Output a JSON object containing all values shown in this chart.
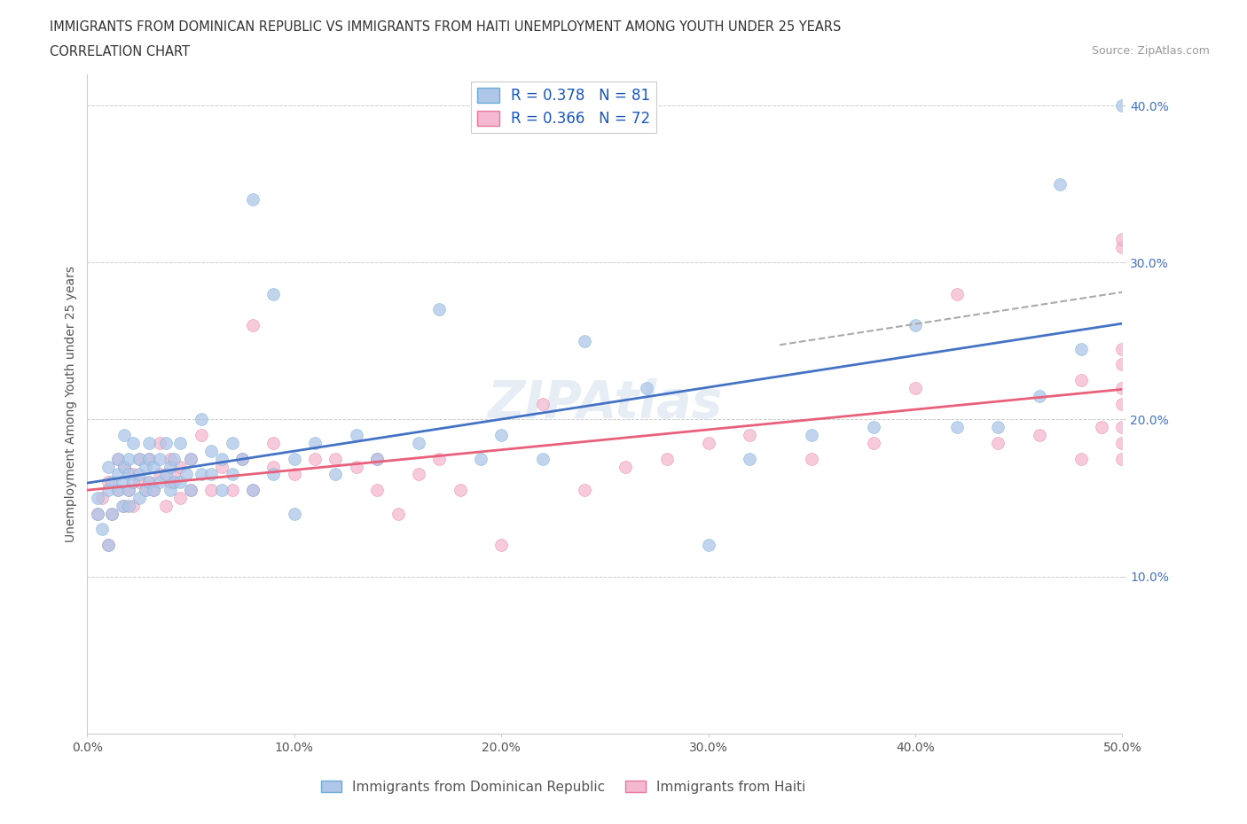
{
  "title_line1": "IMMIGRANTS FROM DOMINICAN REPUBLIC VS IMMIGRANTS FROM HAITI UNEMPLOYMENT AMONG YOUTH UNDER 25 YEARS",
  "title_line2": "CORRELATION CHART",
  "source": "Source: ZipAtlas.com",
  "ylabel": "Unemployment Among Youth under 25 years",
  "xlim": [
    0.0,
    0.5
  ],
  "ylim": [
    0.0,
    0.42
  ],
  "xtick_vals": [
    0.0,
    0.1,
    0.2,
    0.3,
    0.4,
    0.5
  ],
  "ytick_vals": [
    0.1,
    0.2,
    0.3,
    0.4
  ],
  "color_dr": "#aec6e8",
  "color_haiti": "#f4b8d0",
  "edge_dr": "#6aaed6",
  "edge_haiti": "#e87aa0",
  "line_dr": "#4472c4",
  "line_haiti": "#e8607a",
  "r_dr": 0.378,
  "n_dr": 81,
  "r_haiti": 0.366,
  "n_haiti": 72,
  "dr_x": [
    0.005,
    0.005,
    0.007,
    0.01,
    0.01,
    0.01,
    0.012,
    0.012,
    0.015,
    0.015,
    0.015,
    0.017,
    0.017,
    0.018,
    0.018,
    0.02,
    0.02,
    0.02,
    0.02,
    0.022,
    0.022,
    0.025,
    0.025,
    0.025,
    0.028,
    0.028,
    0.03,
    0.03,
    0.03,
    0.032,
    0.032,
    0.035,
    0.035,
    0.038,
    0.038,
    0.04,
    0.04,
    0.042,
    0.042,
    0.045,
    0.045,
    0.048,
    0.05,
    0.05,
    0.055,
    0.055,
    0.06,
    0.06,
    0.065,
    0.065,
    0.07,
    0.07,
    0.075,
    0.08,
    0.08,
    0.09,
    0.09,
    0.1,
    0.1,
    0.11,
    0.12,
    0.13,
    0.14,
    0.16,
    0.17,
    0.19,
    0.2,
    0.22,
    0.24,
    0.27,
    0.3,
    0.32,
    0.35,
    0.38,
    0.4,
    0.42,
    0.44,
    0.46,
    0.47,
    0.48,
    0.5
  ],
  "dr_y": [
    0.14,
    0.15,
    0.13,
    0.12,
    0.155,
    0.17,
    0.14,
    0.16,
    0.155,
    0.165,
    0.175,
    0.145,
    0.16,
    0.17,
    0.19,
    0.145,
    0.155,
    0.165,
    0.175,
    0.16,
    0.185,
    0.15,
    0.165,
    0.175,
    0.155,
    0.17,
    0.16,
    0.175,
    0.185,
    0.155,
    0.17,
    0.16,
    0.175,
    0.165,
    0.185,
    0.155,
    0.17,
    0.16,
    0.175,
    0.16,
    0.185,
    0.165,
    0.155,
    0.175,
    0.165,
    0.2,
    0.165,
    0.18,
    0.155,
    0.175,
    0.165,
    0.185,
    0.175,
    0.155,
    0.34,
    0.165,
    0.28,
    0.14,
    0.175,
    0.185,
    0.165,
    0.19,
    0.175,
    0.185,
    0.27,
    0.175,
    0.19,
    0.175,
    0.25,
    0.22,
    0.12,
    0.175,
    0.19,
    0.195,
    0.26,
    0.195,
    0.195,
    0.215,
    0.35,
    0.245,
    0.4
  ],
  "haiti_x": [
    0.005,
    0.007,
    0.01,
    0.01,
    0.012,
    0.015,
    0.015,
    0.018,
    0.018,
    0.02,
    0.022,
    0.022,
    0.025,
    0.025,
    0.028,
    0.03,
    0.03,
    0.032,
    0.035,
    0.035,
    0.038,
    0.04,
    0.04,
    0.042,
    0.045,
    0.045,
    0.05,
    0.05,
    0.055,
    0.06,
    0.065,
    0.07,
    0.075,
    0.08,
    0.08,
    0.09,
    0.09,
    0.1,
    0.11,
    0.12,
    0.13,
    0.14,
    0.14,
    0.15,
    0.16,
    0.17,
    0.18,
    0.2,
    0.22,
    0.24,
    0.26,
    0.28,
    0.3,
    0.32,
    0.35,
    0.38,
    0.4,
    0.42,
    0.44,
    0.46,
    0.48,
    0.48,
    0.49,
    0.5,
    0.5,
    0.5,
    0.5,
    0.5,
    0.5,
    0.5,
    0.5,
    0.5
  ],
  "haiti_y": [
    0.14,
    0.15,
    0.12,
    0.16,
    0.14,
    0.155,
    0.175,
    0.145,
    0.17,
    0.155,
    0.145,
    0.165,
    0.16,
    0.175,
    0.155,
    0.16,
    0.175,
    0.155,
    0.165,
    0.185,
    0.145,
    0.16,
    0.175,
    0.165,
    0.15,
    0.17,
    0.155,
    0.175,
    0.19,
    0.155,
    0.17,
    0.155,
    0.175,
    0.155,
    0.26,
    0.17,
    0.185,
    0.165,
    0.175,
    0.175,
    0.17,
    0.155,
    0.175,
    0.14,
    0.165,
    0.175,
    0.155,
    0.12,
    0.21,
    0.155,
    0.17,
    0.175,
    0.185,
    0.19,
    0.175,
    0.185,
    0.22,
    0.28,
    0.185,
    0.19,
    0.175,
    0.225,
    0.195,
    0.175,
    0.185,
    0.195,
    0.22,
    0.21,
    0.235,
    0.245,
    0.31,
    0.315
  ]
}
